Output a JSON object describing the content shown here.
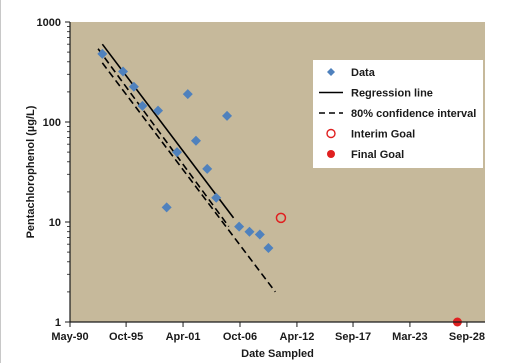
{
  "chart_data": {
    "type": "scatter",
    "xlabel": "Date Sampled",
    "ylabel": "Pentachlorophenol (µg/L)",
    "x_scale": "date",
    "y_scale": "log",
    "xlim": [
      "1990-05-01",
      "2030-06-01"
    ],
    "ylim": [
      1,
      1000
    ],
    "grid": false,
    "legend_position": "top-right",
    "x_ticks": [
      "1990-05-01",
      "1995-10-01",
      "2001-04-01",
      "2006-10-01",
      "2012-04-01",
      "2017-09-01",
      "2023-03-01",
      "2028-09-01"
    ],
    "x_tick_labels": [
      "May-90",
      "Oct-95",
      "Apr-01",
      "Oct-06",
      "Apr-12",
      "Sep-17",
      "Mar-23",
      "Sep-28"
    ],
    "y_ticks": [
      1,
      10,
      100,
      1000
    ],
    "y_tick_labels": [
      "1",
      "10",
      "100",
      "1000"
    ],
    "series": [
      {
        "name": "Data",
        "kind": "scatter",
        "marker": "diamond",
        "color": "#4f81bd",
        "points": [
          {
            "x": "1993-06-15",
            "y": 480
          },
          {
            "x": "1995-06-15",
            "y": 320
          },
          {
            "x": "1996-07-01",
            "y": 225
          },
          {
            "x": "1997-05-01",
            "y": 145
          },
          {
            "x": "1998-11-01",
            "y": 130
          },
          {
            "x": "1999-09-01",
            "y": 14
          },
          {
            "x": "2000-09-01",
            "y": 50
          },
          {
            "x": "2001-09-15",
            "y": 190
          },
          {
            "x": "2002-07-01",
            "y": 65
          },
          {
            "x": "2003-08-01",
            "y": 34
          },
          {
            "x": "2004-06-15",
            "y": 17.5
          },
          {
            "x": "2005-07-01",
            "y": 115
          },
          {
            "x": "2006-09-01",
            "y": 9
          },
          {
            "x": "2007-09-01",
            "y": 8
          },
          {
            "x": "2008-09-01",
            "y": 7.5
          },
          {
            "x": "2009-07-01",
            "y": 5.5
          }
        ]
      },
      {
        "name": "Regression line",
        "kind": "line",
        "style": "solid",
        "color": "#000000",
        "points": [
          {
            "x": "1993-06-15",
            "y": 600
          },
          {
            "x": "2006-02-15",
            "y": 11
          }
        ]
      },
      {
        "name": "80% confidence interval",
        "kind": "line",
        "style": "dashed",
        "color": "#000000",
        "segments": [
          [
            {
              "x": "1993-01-15",
              "y": 540
            },
            {
              "x": "2005-09-01",
              "y": 9
            }
          ],
          [
            {
              "x": "1993-06-15",
              "y": 390
            },
            {
              "x": "2010-03-01",
              "y": 2
            }
          ]
        ]
      },
      {
        "name": "Interim Goal",
        "kind": "scatter",
        "marker": "circle-open",
        "color": "#e02020",
        "points": [
          {
            "x": "2010-09-15",
            "y": 11
          }
        ]
      },
      {
        "name": "Final Goal",
        "kind": "scatter",
        "marker": "circle-filled",
        "color": "#e02020",
        "points": [
          {
            "x": "2027-10-01",
            "y": 1
          }
        ]
      }
    ]
  },
  "colors": {
    "plot_background": "#c6b99b",
    "data_marker": "#4f81bd",
    "goal_marker": "#e02020"
  }
}
